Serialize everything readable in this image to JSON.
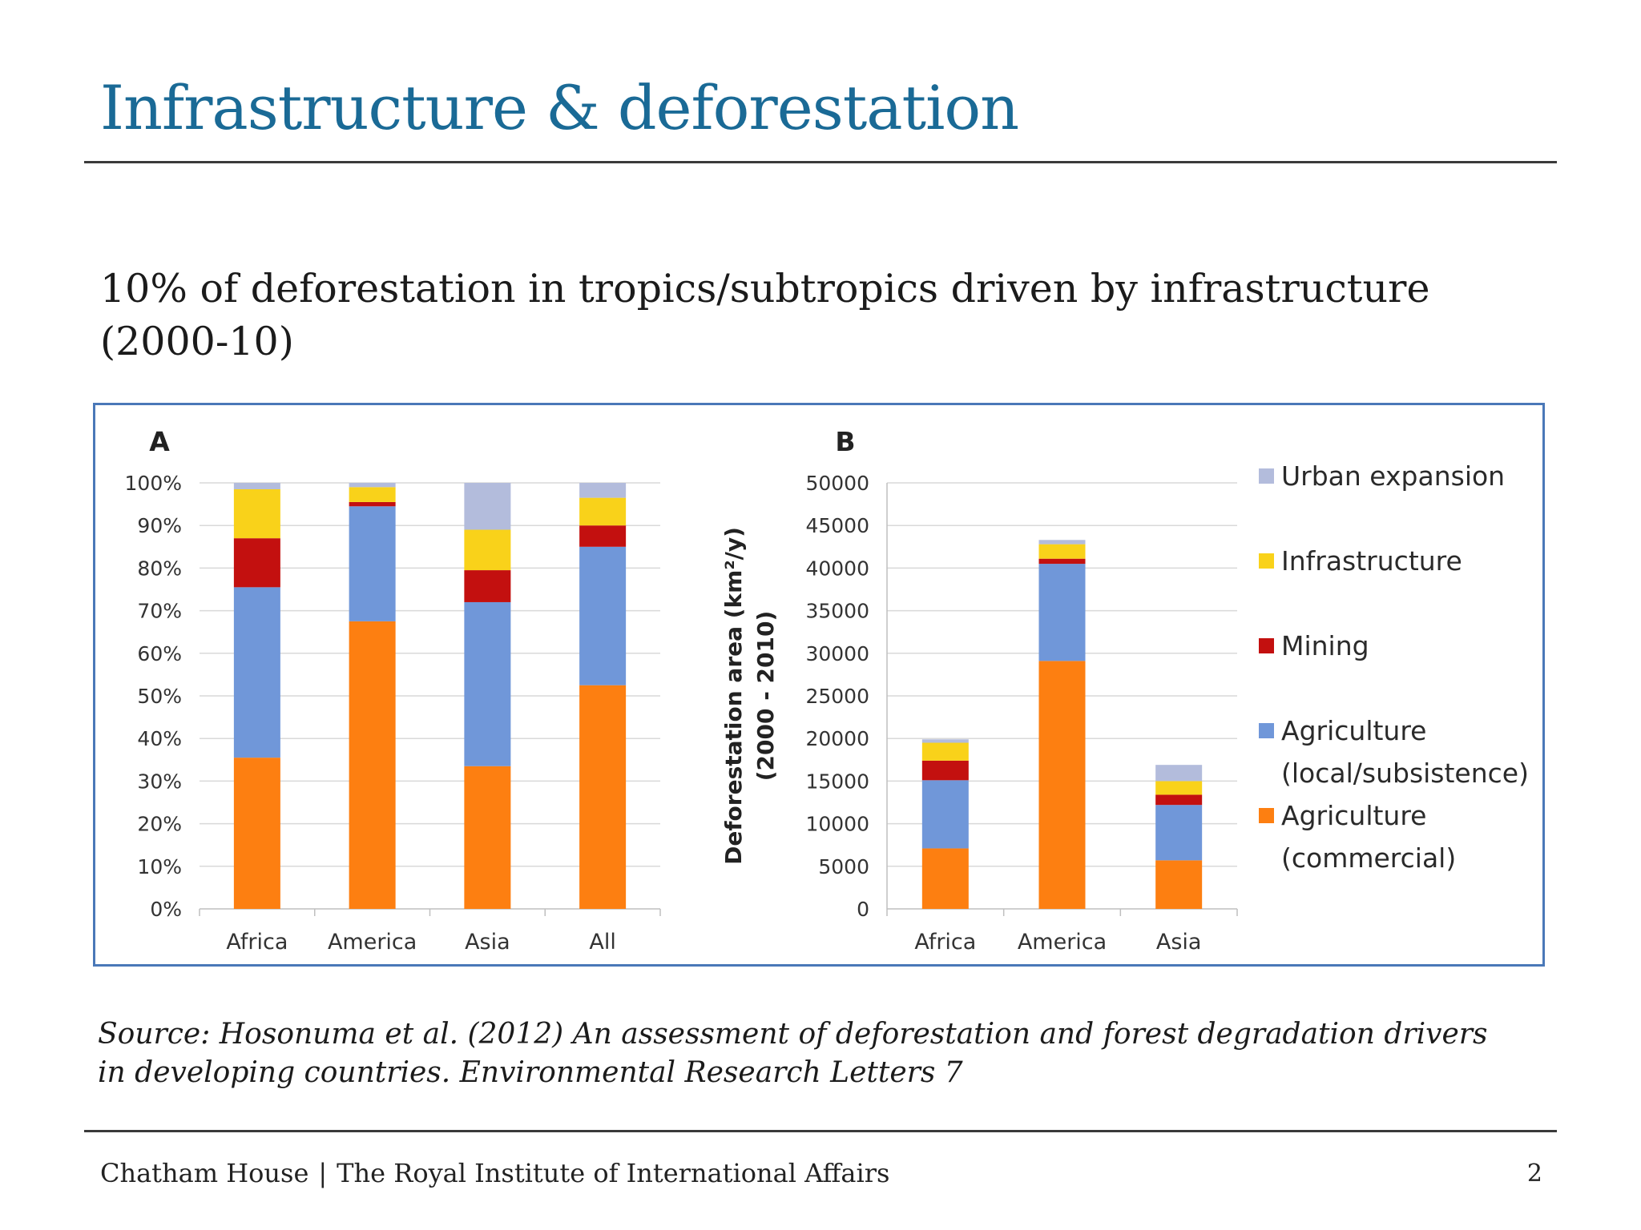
{
  "slide": {
    "title": "Infrastructure & deforestation",
    "subtitle": "10% of deforestation in tropics/subtropics driven by infrastructure (2000-10)",
    "source": "Source: Hosonuma et al. (2012) An assessment of deforestation and forest degradation drivers in developing countries. Environmental Research Letters 7",
    "footer_org": "Chatham House",
    "footer_separator": "|",
    "footer_institute": "The Royal Institute of International Affairs",
    "page_number": "2",
    "title_color": "#1a6a96",
    "frame_color": "#4a78b8"
  },
  "chart_data": [
    {
      "panel": "A",
      "type": "bar",
      "stacked": true,
      "categories": [
        "Africa",
        "America",
        "Asia",
        "All"
      ],
      "ylim": [
        0,
        100
      ],
      "yticks": [
        "0%",
        "10%",
        "20%",
        "30%",
        "40%",
        "50%",
        "60%",
        "70%",
        "80%",
        "90%",
        "100%"
      ],
      "grid": true,
      "xlabel": "",
      "ylabel": "",
      "series": [
        {
          "name": "Agriculture (commercial)",
          "color": "#fd7f11",
          "values": [
            35.5,
            67.5,
            33.5,
            52.5
          ]
        },
        {
          "name": "Agriculture (local/subsistence)",
          "color": "#7097d9",
          "values": [
            40,
            27,
            38.5,
            32.5
          ]
        },
        {
          "name": "Mining",
          "color": "#c3100f",
          "values": [
            11.5,
            1,
            7.5,
            5
          ]
        },
        {
          "name": "Infrastructure",
          "color": "#f9d21a",
          "values": [
            11.5,
            3.5,
            9.5,
            6.5
          ]
        },
        {
          "name": "Urban expansion",
          "color": "#b3bcdc",
          "values": [
            1.5,
            1,
            11,
            3.5
          ]
        }
      ]
    },
    {
      "panel": "B",
      "type": "bar",
      "stacked": true,
      "categories": [
        "Africa",
        "America",
        "Asia"
      ],
      "ylim": [
        0,
        50000
      ],
      "yticks": [
        "0",
        "5000",
        "10000",
        "15000",
        "20000",
        "25000",
        "30000",
        "35000",
        "40000",
        "45000",
        "50000"
      ],
      "grid": true,
      "xlabel": "",
      "ylabel": "Deforestation area (km²/y) (2000 - 2010)",
      "ylabel_lines": [
        "Deforestation area (km²/y)",
        "(2000 - 2010)"
      ],
      "legend_position": "right",
      "series": [
        {
          "name": "Agriculture (commercial)",
          "color": "#fd7f11",
          "values": [
            7100,
            29100,
            5700
          ]
        },
        {
          "name": "Agriculture (local/subsistence)",
          "color": "#7097d9",
          "values": [
            8000,
            11400,
            6500
          ]
        },
        {
          "name": "Mining",
          "color": "#c3100f",
          "values": [
            2300,
            600,
            1200
          ]
        },
        {
          "name": "Infrastructure",
          "color": "#f9d21a",
          "values": [
            2100,
            1700,
            1600
          ]
        },
        {
          "name": "Urban expansion",
          "color": "#b3bcdc",
          "values": [
            400,
            500,
            1900
          ]
        }
      ]
    }
  ],
  "legend": {
    "items": [
      {
        "label_lines": [
          "Urban expansion"
        ],
        "color": "#b3bcdc"
      },
      {
        "label_lines": [
          "Infrastructure"
        ],
        "color": "#f9d21a"
      },
      {
        "label_lines": [
          "Mining"
        ],
        "color": "#c3100f"
      },
      {
        "label_lines": [
          "Agriculture",
          "(local/subsistence)"
        ],
        "color": "#7097d9"
      },
      {
        "label_lines": [
          "Agriculture",
          "(commercial)"
        ],
        "color": "#fd7f11"
      }
    ]
  }
}
